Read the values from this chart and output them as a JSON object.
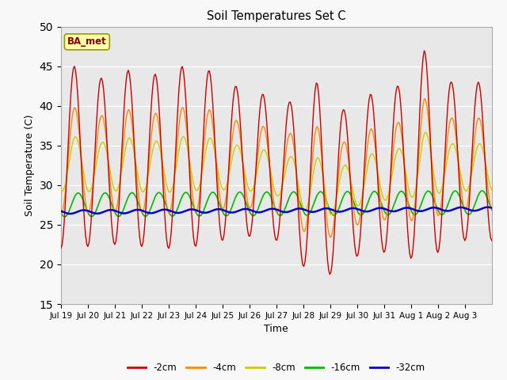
{
  "title": "Soil Temperatures Set C",
  "xlabel": "Time",
  "ylabel": "Soil Temperature (C)",
  "ylim": [
    15,
    50
  ],
  "yticks": [
    15,
    20,
    25,
    30,
    35,
    40,
    45,
    50
  ],
  "annotation": "BA_met",
  "line_colors": {
    "-2cm": "#cc0000",
    "-4cm": "#ff8800",
    "-8cm": "#cccc00",
    "-16cm": "#00bb00",
    "-32cm": "#0000cc"
  },
  "legend_labels": [
    "-2cm",
    "-4cm",
    "-8cm",
    "-16cm",
    "-32cm"
  ],
  "fig_bg_color": "#f8f8f8",
  "plot_bg_color": "#e8e8e8",
  "tick_labels": [
    "Jul 19",
    "Jul 20",
    "Jul 21",
    "Jul 22",
    "Jul 23",
    "Jul 24",
    "Jul 25",
    "Jul 26",
    "Jul 27",
    "Jul 28",
    "Jul 29",
    "Jul 30",
    "Jul 31",
    "Aug 1",
    "Aug 2",
    "Aug 3"
  ]
}
